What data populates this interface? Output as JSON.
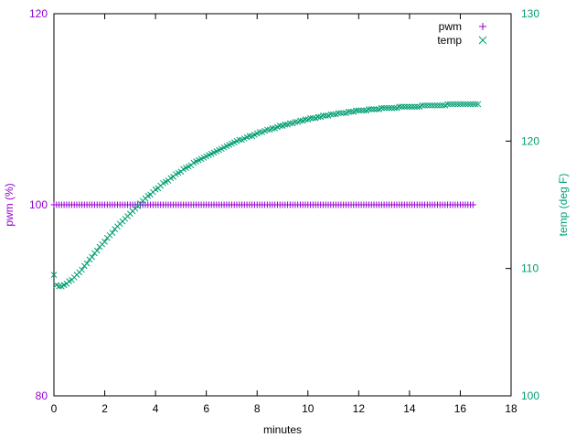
{
  "chart_data": {
    "type": "scatter",
    "title": "",
    "xlabel": "minutes",
    "ylabel": "pwm (%)",
    "y2label": "temp (deg F)",
    "xlim": [
      0,
      18
    ],
    "ylim": [
      80,
      120
    ],
    "y2lim": [
      100,
      130
    ],
    "xticks": [
      "0",
      "2",
      "4",
      "6",
      "8",
      "10",
      "12",
      "14",
      "16",
      "18"
    ],
    "yticks": [
      "80",
      "100",
      "120"
    ],
    "y2ticks": [
      "100",
      "110",
      "120",
      "130"
    ],
    "grid": false,
    "legend": "top-right",
    "series": [
      {
        "name": "pwm",
        "axis": "y",
        "marker": "plus",
        "color": "#9400d3",
        "x_start": 0.0,
        "x_step": 0.1,
        "values": [
          100,
          100,
          100,
          100,
          100,
          100,
          100,
          100,
          100,
          100,
          100,
          100,
          100,
          100,
          100,
          100,
          100,
          100,
          100,
          100,
          100,
          100,
          100,
          100,
          100,
          100,
          100,
          100,
          100,
          100,
          100,
          100,
          100,
          100,
          100,
          100,
          100,
          100,
          100,
          100,
          100,
          100,
          100,
          100,
          100,
          100,
          100,
          100,
          100,
          100,
          100,
          100,
          100,
          100,
          100,
          100,
          100,
          100,
          100,
          100,
          100,
          100,
          100,
          100,
          100,
          100,
          100,
          100,
          100,
          100,
          100,
          100,
          100,
          100,
          100,
          100,
          100,
          100,
          100,
          100,
          100,
          100,
          100,
          100,
          100,
          100,
          100,
          100,
          100,
          100,
          100,
          100,
          100,
          100,
          100,
          100,
          100,
          100,
          100,
          100,
          100,
          100,
          100,
          100,
          100,
          100,
          100,
          100,
          100,
          100,
          100,
          100,
          100,
          100,
          100,
          100,
          100,
          100,
          100,
          100,
          100,
          100,
          100,
          100,
          100,
          100,
          100,
          100,
          100,
          100,
          100,
          100,
          100,
          100,
          100,
          100,
          100,
          100,
          100,
          100,
          100,
          100,
          100,
          100,
          100,
          100,
          100,
          100,
          100,
          100,
          100,
          100,
          100,
          100,
          100,
          100,
          100,
          100,
          100,
          100,
          100,
          100,
          100,
          100,
          100,
          100
        ]
      },
      {
        "name": "temp",
        "axis": "y2",
        "marker": "cross",
        "color": "#009e73",
        "x_start": 0.0,
        "x_step": 0.1,
        "values": [
          109.5,
          108.7,
          108.6,
          108.6,
          108.7,
          108.8,
          109,
          109.1,
          109.3,
          109.5,
          109.7,
          109.9,
          110.2,
          110.4,
          110.7,
          110.9,
          111.2,
          111.4,
          111.7,
          111.9,
          112.1,
          112.4,
          112.6,
          112.8,
          113.1,
          113.3,
          113.5,
          113.7,
          113.9,
          114.1,
          114.3,
          114.5,
          114.7,
          114.9,
          115.1,
          115.3,
          115.5,
          115.7,
          115.8,
          116,
          116.2,
          116.3,
          116.5,
          116.7,
          116.8,
          116.9,
          117.1,
          117.2,
          117.4,
          117.5,
          117.6,
          117.8,
          117.9,
          118,
          118.1,
          118.3,
          118.4,
          118.5,
          118.6,
          118.7,
          118.8,
          118.9,
          119,
          119.1,
          119.2,
          119.3,
          119.4,
          119.5,
          119.6,
          119.7,
          119.8,
          119.9,
          120,
          120.1,
          120.1,
          120.2,
          120.3,
          120.4,
          120.4,
          120.5,
          120.6,
          120.7,
          120.7,
          120.8,
          120.9,
          120.9,
          121,
          121,
          121.1,
          121.2,
          121.2,
          121.3,
          121.3,
          121.4,
          121.4,
          121.5,
          121.5,
          121.6,
          121.6,
          121.7,
          121.7,
          121.8,
          121.8,
          121.8,
          121.9,
          121.9,
          122,
          122,
          122,
          122.1,
          122.1,
          122.1,
          122.2,
          122.2,
          122.2,
          122.2,
          122.3,
          122.3,
          122.3,
          122.4,
          122.4,
          122.4,
          122.4,
          122.4,
          122.5,
          122.5,
          122.5,
          122.5,
          122.5,
          122.6,
          122.6,
          122.6,
          122.6,
          122.6,
          122.6,
          122.6,
          122.7,
          122.7,
          122.7,
          122.7,
          122.7,
          122.7,
          122.7,
          122.7,
          122.7,
          122.8,
          122.8,
          122.8,
          122.8,
          122.8,
          122.8,
          122.8,
          122.8,
          122.8,
          122.8,
          122.9,
          122.9,
          122.9,
          122.9,
          122.9,
          122.9,
          122.9,
          122.9,
          122.9,
          122.9,
          122.9,
          122.9,
          122.9
        ]
      }
    ]
  }
}
